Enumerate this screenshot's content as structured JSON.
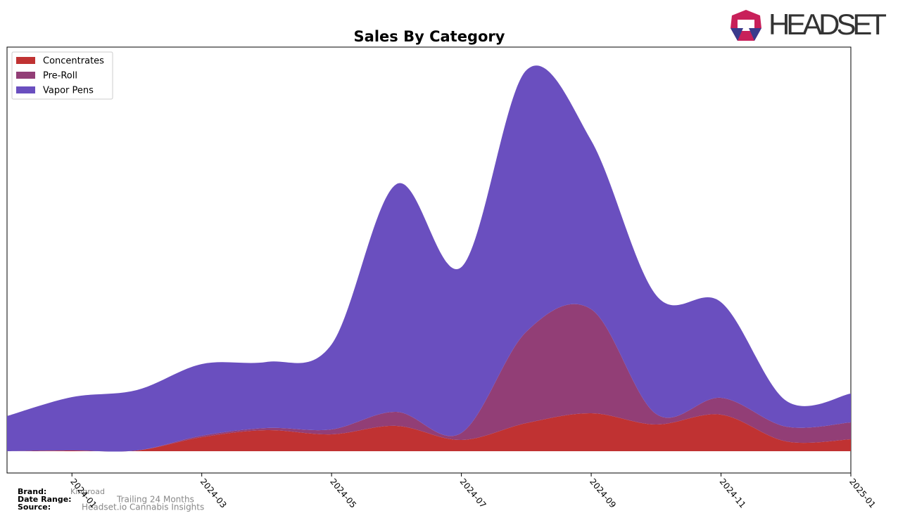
{
  "chart_data": {
    "type": "stacked-area",
    "title": "Sales By Category",
    "x": [
      "2023-12",
      "2024-01",
      "2024-02",
      "2024-03",
      "2024-04",
      "2024-05",
      "2024-06",
      "2024-07",
      "2024-08",
      "2024-09",
      "2024-10",
      "2024-11",
      "2024-12",
      "2025-01"
    ],
    "xlim": [
      "2023-12",
      "2025-01"
    ],
    "xticks": [
      "2024-01",
      "2024-03",
      "2024-05",
      "2024-07",
      "2024-09",
      "2024-11",
      "2025-01"
    ],
    "ylim": [
      -31,
      575
    ],
    "legend": "upper-left",
    "series": [
      {
        "name": "Concentrates",
        "color": "#c03232",
        "values": [
          0,
          1,
          1,
          20,
          30,
          24,
          36,
          16,
          40,
          54,
          38,
          52,
          14,
          17
        ]
      },
      {
        "name": "Pre-Roll",
        "color": "#923e76",
        "values": [
          0,
          0,
          0,
          2,
          3,
          7,
          20,
          10,
          130,
          148,
          15,
          24,
          21,
          24
        ]
      },
      {
        "name": "Vapor Pens",
        "color": "#6a4fbf",
        "values": [
          50,
          76,
          86,
          102,
          94,
          121,
          324,
          236,
          372,
          240,
          169,
          136,
          37,
          41
        ]
      }
    ],
    "brand_label": "Brand:",
    "brand": "Kingroad",
    "date_range_label": "Date Range:",
    "date_range": "Trailing 24 Months",
    "source_label": "Source:",
    "source": "Headset.io Cannabis Insights",
    "logo_text": "HEADSET"
  }
}
